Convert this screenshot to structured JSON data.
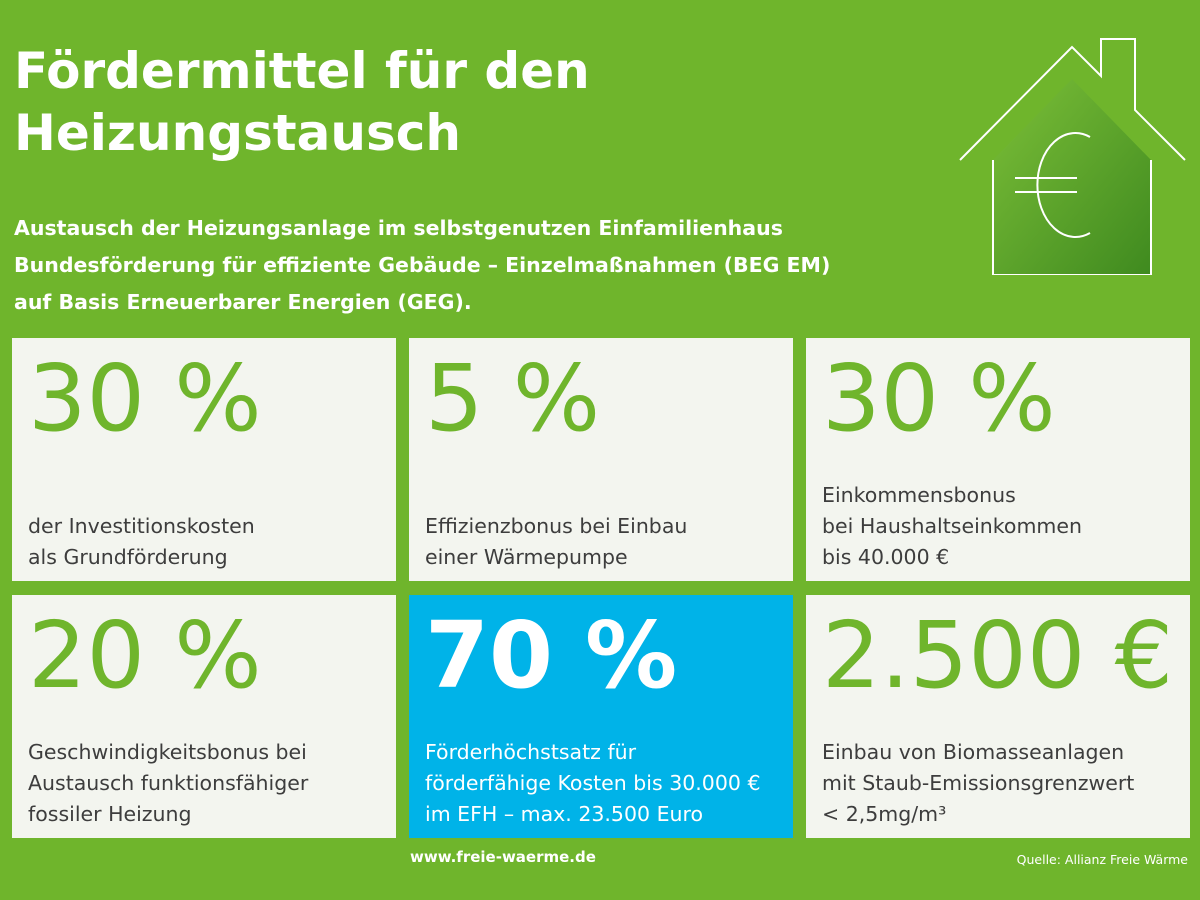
{
  "header": {
    "title_lines": [
      "Fördermittel für den",
      "Heizungstausch"
    ],
    "subtitle_lines": [
      "Austausch der Heizungsanlage im selbstgenutzen Einfamilienhaus",
      "Bundesförderung für effiziente Gebäude – Einzelmaßnahmen (BEG EM)",
      "auf Basis Erneuerbarer Energien (GEG)."
    ]
  },
  "icon": "house-euro-icon",
  "colors": {
    "background": "#6fb52c",
    "card": "#f3f5ef",
    "highlight": "#00b3e8",
    "accent_text": "#6fb52c"
  },
  "cards": [
    {
      "value": "30 %",
      "desc": [
        "der Investitionskosten",
        "als Grundförderung"
      ]
    },
    {
      "value": "5 %",
      "desc": [
        "Effizienzbonus bei Einbau",
        "einer Wärmepumpe"
      ]
    },
    {
      "value": "30 %",
      "desc": [
        "Einkommensbonus",
        "bei Haushaltseinkommen",
        "bis 40.000 €"
      ]
    },
    {
      "value": "20 %",
      "desc": [
        "Geschwindigkeitsbonus bei",
        "Austausch funktionsfähiger",
        "fossiler Heizung"
      ]
    },
    {
      "value": "70 %",
      "desc": [
        "Förderhöchstsatz für",
        "förderfähige Kosten bis 30.000 €",
        "im EFH – max. 23.500 Euro"
      ]
    },
    {
      "value": "2.500 €",
      "desc": [
        "Einbau von Biomasseanlagen",
        "mit Staub-Emissionsgrenzwert",
        "< 2,5mg/m³"
      ]
    }
  ],
  "footer": {
    "url": "www.freie-waerme.de",
    "source": "Quelle: Allianz Freie Wärme"
  }
}
